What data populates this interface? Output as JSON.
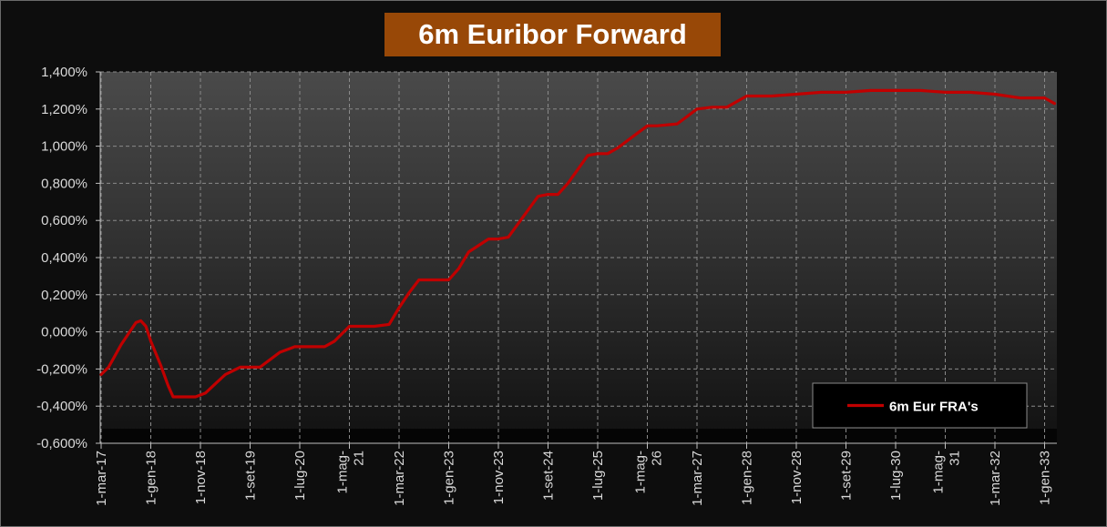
{
  "chart_data": {
    "type": "line",
    "title": "6m Euribor Forward",
    "xlabel": "",
    "ylabel": "",
    "ylim": [
      -0.6,
      1.4
    ],
    "x_tick_labels": [
      [
        "1-mar-17"
      ],
      [
        "1-gen-18"
      ],
      [
        "1-nov-18"
      ],
      [
        "1-set-19"
      ],
      [
        "1-lug-20"
      ],
      [
        "1-mag-",
        "21"
      ],
      [
        "1-mar-22"
      ],
      [
        "1-gen-23"
      ],
      [
        "1-nov-23"
      ],
      [
        "1-set-24"
      ],
      [
        "1-lug-25"
      ],
      [
        "1-mag-",
        "26"
      ],
      [
        "1-mar-27"
      ],
      [
        "1-gen-28"
      ],
      [
        "1-nov-28"
      ],
      [
        "1-set-29"
      ],
      [
        "1-lug-30"
      ],
      [
        "1-mag-",
        "31"
      ],
      [
        "1-mar-32"
      ],
      [
        "1-gen-33"
      ]
    ],
    "y_tick_labels": [
      "-0,600%",
      "-0,400%",
      "-0,200%",
      "0,000%",
      "0,200%",
      "0,400%",
      "0,600%",
      "0,800%",
      "1,000%",
      "1,200%",
      "1,400%"
    ],
    "y_ticks": [
      -0.6,
      -0.4,
      -0.2,
      0.0,
      0.2,
      0.4,
      0.6,
      0.8,
      1.0,
      1.2,
      1.4
    ],
    "grid": true,
    "legend_position": "bottom-right",
    "series": [
      {
        "name": "6m Eur FRA's",
        "color": "#c00000",
        "x_index": [
          0.0,
          0.15,
          0.4,
          0.7,
          0.8,
          0.9,
          1.0,
          1.2,
          1.35,
          1.45,
          1.6,
          1.75,
          1.9,
          2.1,
          2.3,
          2.5,
          2.8,
          3.0,
          3.2,
          3.4,
          3.6,
          3.8,
          3.9,
          4.2,
          4.5,
          4.7,
          5.0,
          5.3,
          5.5,
          5.8,
          6.0,
          6.2,
          6.4,
          6.8,
          7.0,
          7.2,
          7.4,
          7.8,
          8.0,
          8.2,
          8.5,
          8.8,
          9.0,
          9.2,
          9.4,
          9.8,
          10.0,
          10.2,
          10.4,
          10.8,
          11.0,
          11.2,
          11.6,
          11.8,
          12.0,
          12.3,
          12.6,
          12.8,
          13.0,
          13.5,
          14.0,
          14.5,
          15.0,
          15.5,
          15.8,
          16.5,
          17.0,
          17.5,
          18.0,
          18.5,
          19.0,
          19.2
        ],
        "values": [
          -0.23,
          -0.19,
          -0.07,
          0.05,
          0.06,
          0.03,
          -0.05,
          -0.18,
          -0.29,
          -0.35,
          -0.35,
          -0.35,
          -0.35,
          -0.33,
          -0.28,
          -0.23,
          -0.19,
          -0.19,
          -0.19,
          -0.15,
          -0.11,
          -0.09,
          -0.08,
          -0.08,
          -0.08,
          -0.05,
          0.03,
          0.03,
          0.03,
          0.04,
          0.13,
          0.21,
          0.28,
          0.28,
          0.28,
          0.34,
          0.43,
          0.5,
          0.5,
          0.51,
          0.62,
          0.73,
          0.74,
          0.74,
          0.8,
          0.95,
          0.96,
          0.96,
          0.99,
          1.07,
          1.11,
          1.11,
          1.12,
          1.16,
          1.2,
          1.21,
          1.21,
          1.24,
          1.27,
          1.27,
          1.28,
          1.29,
          1.29,
          1.3,
          1.3,
          1.3,
          1.29,
          1.29,
          1.28,
          1.26,
          1.26,
          1.23
        ]
      }
    ]
  }
}
